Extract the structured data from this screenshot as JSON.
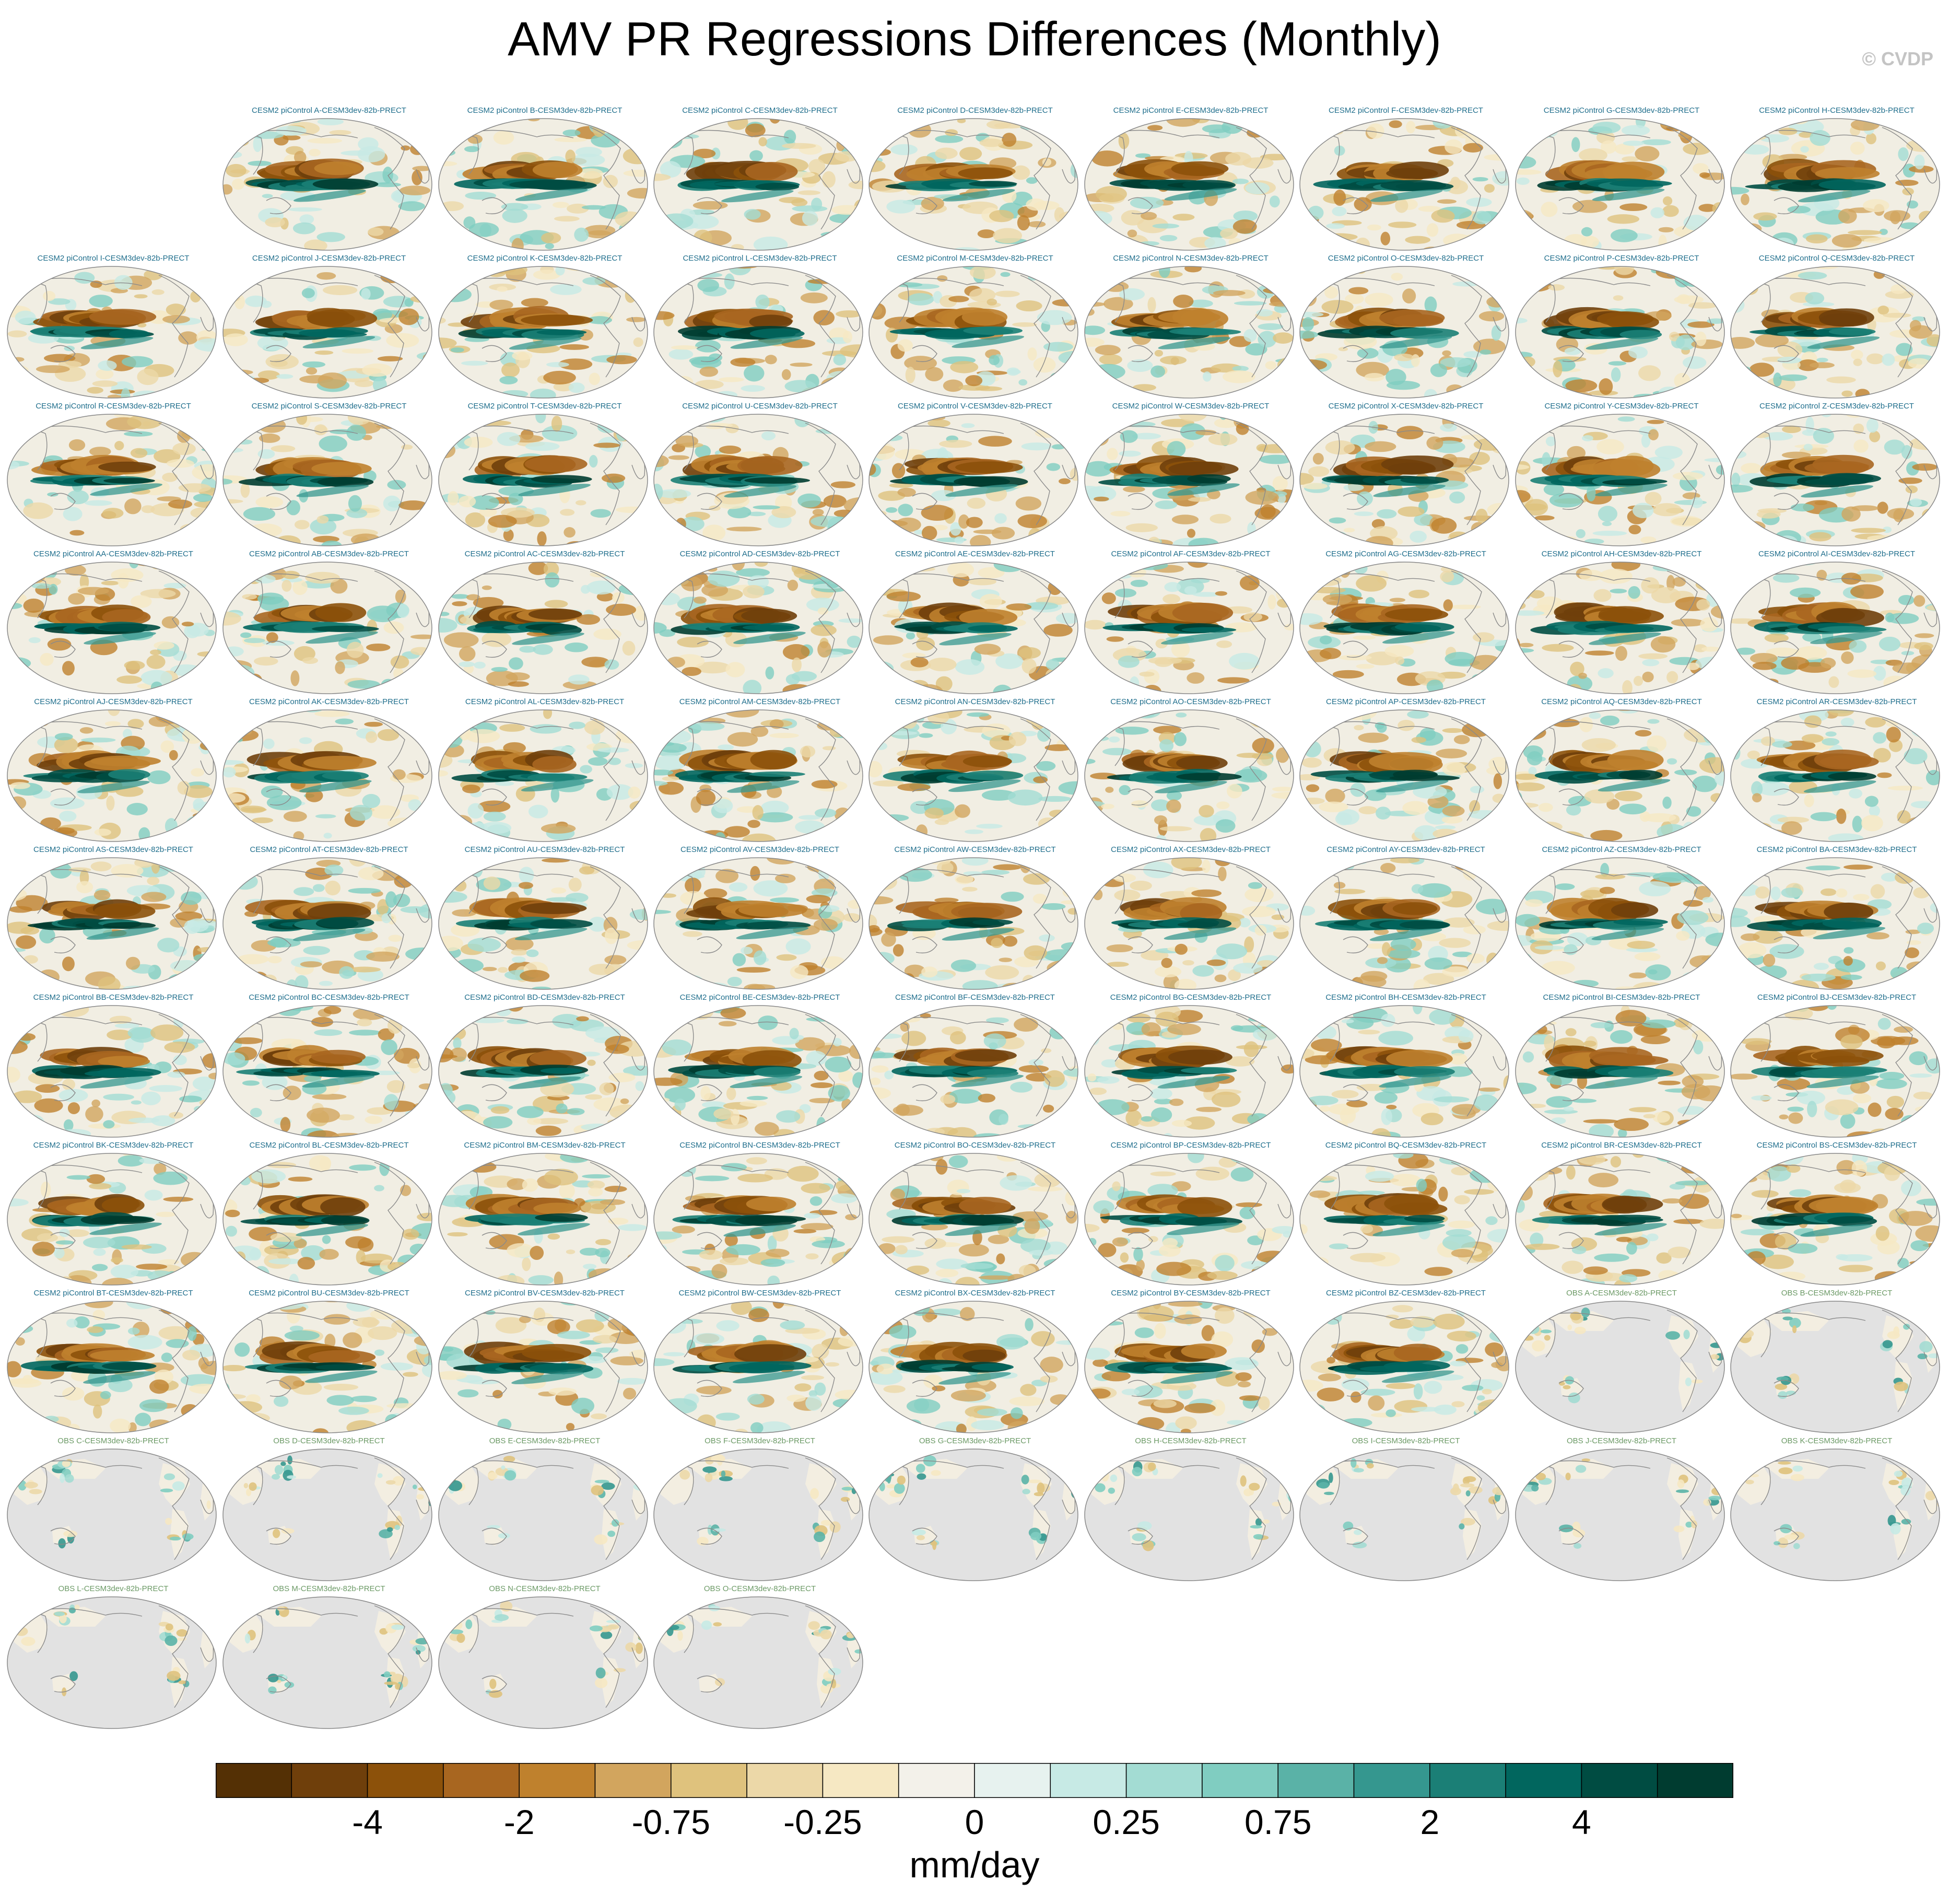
{
  "title": "AMV PR Regressions Differences (Monthly)",
  "credit": "© CVDP",
  "chart_data": {
    "type": "heatmap",
    "title": "AMV PR Regressions Differences (Monthly)",
    "units": "mm/day",
    "colorbar": {
      "levels": [
        -5,
        -4,
        -3,
        -2,
        -1,
        -0.75,
        -0.5,
        -0.25,
        -0.1,
        0,
        0.1,
        0.25,
        0.5,
        0.75,
        1,
        2,
        3,
        4,
        5
      ],
      "tick_labels": [
        "-4",
        "-2",
        "-0.75",
        "-0.25",
        "0",
        "0.25",
        "0.75",
        "2",
        "4"
      ],
      "tick_values": [
        -4,
        -2,
        -0.75,
        -0.25,
        0,
        0.25,
        0.75,
        2,
        4
      ],
      "colors": [
        "#543005",
        "#6f3f0b",
        "#8c510a",
        "#a86620",
        "#bf812d",
        "#d2a55e",
        "#dfc27d",
        "#ecd8a8",
        "#f6e8c3",
        "#f3f1ea",
        "#e7f2ef",
        "#c7eae5",
        "#a3dcd3",
        "#80cdc1",
        "#5ab2a7",
        "#35978f",
        "#1b7f76",
        "#01665e",
        "#004c42",
        "#003c30"
      ]
    },
    "panels": [
      {
        "title": "CESM2 piControl A-CESM3dev-82b-PRECT",
        "kind": "model"
      },
      {
        "title": "CESM2 piControl B-CESM3dev-82b-PRECT",
        "kind": "model"
      },
      {
        "title": "CESM2 piControl C-CESM3dev-82b-PRECT",
        "kind": "model"
      },
      {
        "title": "CESM2 piControl D-CESM3dev-82b-PRECT",
        "kind": "model"
      },
      {
        "title": "CESM2 piControl E-CESM3dev-82b-PRECT",
        "kind": "model"
      },
      {
        "title": "CESM2 piControl F-CESM3dev-82b-PRECT",
        "kind": "model"
      },
      {
        "title": "CESM2 piControl G-CESM3dev-82b-PRECT",
        "kind": "model"
      },
      {
        "title": "CESM2 piControl H-CESM3dev-82b-PRECT",
        "kind": "model"
      },
      {
        "title": "CESM2 piControl I-CESM3dev-82b-PRECT",
        "kind": "model"
      },
      {
        "title": "CESM2 piControl J-CESM3dev-82b-PRECT",
        "kind": "model"
      },
      {
        "title": "CESM2 piControl K-CESM3dev-82b-PRECT",
        "kind": "model"
      },
      {
        "title": "CESM2 piControl L-CESM3dev-82b-PRECT",
        "kind": "model"
      },
      {
        "title": "CESM2 piControl M-CESM3dev-82b-PRECT",
        "kind": "model"
      },
      {
        "title": "CESM2 piControl N-CESM3dev-82b-PRECT",
        "kind": "model"
      },
      {
        "title": "CESM2 piControl O-CESM3dev-82b-PRECT",
        "kind": "model"
      },
      {
        "title": "CESM2 piControl P-CESM3dev-82b-PRECT",
        "kind": "model"
      },
      {
        "title": "CESM2 piControl Q-CESM3dev-82b-PRECT",
        "kind": "model"
      },
      {
        "title": "CESM2 piControl R-CESM3dev-82b-PRECT",
        "kind": "model"
      },
      {
        "title": "CESM2 piControl S-CESM3dev-82b-PRECT",
        "kind": "model"
      },
      {
        "title": "CESM2 piControl T-CESM3dev-82b-PRECT",
        "kind": "model"
      },
      {
        "title": "CESM2 piControl U-CESM3dev-82b-PRECT",
        "kind": "model"
      },
      {
        "title": "CESM2 piControl V-CESM3dev-82b-PRECT",
        "kind": "model"
      },
      {
        "title": "CESM2 piControl W-CESM3dev-82b-PRECT",
        "kind": "model"
      },
      {
        "title": "CESM2 piControl X-CESM3dev-82b-PRECT",
        "kind": "model"
      },
      {
        "title": "CESM2 piControl Y-CESM3dev-82b-PRECT",
        "kind": "model"
      },
      {
        "title": "CESM2 piControl Z-CESM3dev-82b-PRECT",
        "kind": "model"
      },
      {
        "title": "CESM2 piControl AA-CESM3dev-82b-PRECT",
        "kind": "model"
      },
      {
        "title": "CESM2 piControl AB-CESM3dev-82b-PRECT",
        "kind": "model"
      },
      {
        "title": "CESM2 piControl AC-CESM3dev-82b-PRECT",
        "kind": "model"
      },
      {
        "title": "CESM2 piControl AD-CESM3dev-82b-PRECT",
        "kind": "model"
      },
      {
        "title": "CESM2 piControl AE-CESM3dev-82b-PRECT",
        "kind": "model"
      },
      {
        "title": "CESM2 piControl AF-CESM3dev-82b-PRECT",
        "kind": "model"
      },
      {
        "title": "CESM2 piControl AG-CESM3dev-82b-PRECT",
        "kind": "model"
      },
      {
        "title": "CESM2 piControl AH-CESM3dev-82b-PRECT",
        "kind": "model"
      },
      {
        "title": "CESM2 piControl AI-CESM3dev-82b-PRECT",
        "kind": "model"
      },
      {
        "title": "CESM2 piControl AJ-CESM3dev-82b-PRECT",
        "kind": "model"
      },
      {
        "title": "CESM2 piControl AK-CESM3dev-82b-PRECT",
        "kind": "model"
      },
      {
        "title": "CESM2 piControl AL-CESM3dev-82b-PRECT",
        "kind": "model"
      },
      {
        "title": "CESM2 piControl AM-CESM3dev-82b-PRECT",
        "kind": "model"
      },
      {
        "title": "CESM2 piControl AN-CESM3dev-82b-PRECT",
        "kind": "model"
      },
      {
        "title": "CESM2 piControl AO-CESM3dev-82b-PRECT",
        "kind": "model"
      },
      {
        "title": "CESM2 piControl AP-CESM3dev-82b-PRECT",
        "kind": "model"
      },
      {
        "title": "CESM2 piControl AQ-CESM3dev-82b-PRECT",
        "kind": "model"
      },
      {
        "title": "CESM2 piControl AR-CESM3dev-82b-PRECT",
        "kind": "model"
      },
      {
        "title": "CESM2 piControl AS-CESM3dev-82b-PRECT",
        "kind": "model"
      },
      {
        "title": "CESM2 piControl AT-CESM3dev-82b-PRECT",
        "kind": "model"
      },
      {
        "title": "CESM2 piControl AU-CESM3dev-82b-PRECT",
        "kind": "model"
      },
      {
        "title": "CESM2 piControl AV-CESM3dev-82b-PRECT",
        "kind": "model"
      },
      {
        "title": "CESM2 piControl AW-CESM3dev-82b-PRECT",
        "kind": "model"
      },
      {
        "title": "CESM2 piControl AX-CESM3dev-82b-PRECT",
        "kind": "model"
      },
      {
        "title": "CESM2 piControl AY-CESM3dev-82b-PRECT",
        "kind": "model"
      },
      {
        "title": "CESM2 piControl AZ-CESM3dev-82b-PRECT",
        "kind": "model"
      },
      {
        "title": "CESM2 piControl BA-CESM3dev-82b-PRECT",
        "kind": "model"
      },
      {
        "title": "CESM2 piControl BB-CESM3dev-82b-PRECT",
        "kind": "model"
      },
      {
        "title": "CESM2 piControl BC-CESM3dev-82b-PRECT",
        "kind": "model"
      },
      {
        "title": "CESM2 piControl BD-CESM3dev-82b-PRECT",
        "kind": "model"
      },
      {
        "title": "CESM2 piControl BE-CESM3dev-82b-PRECT",
        "kind": "model"
      },
      {
        "title": "CESM2 piControl BF-CESM3dev-82b-PRECT",
        "kind": "model"
      },
      {
        "title": "CESM2 piControl BG-CESM3dev-82b-PRECT",
        "kind": "model"
      },
      {
        "title": "CESM2 piControl BH-CESM3dev-82b-PRECT",
        "kind": "model"
      },
      {
        "title": "CESM2 piControl BI-CESM3dev-82b-PRECT",
        "kind": "model"
      },
      {
        "title": "CESM2 piControl BJ-CESM3dev-82b-PRECT",
        "kind": "model"
      },
      {
        "title": "CESM2 piControl BK-CESM3dev-82b-PRECT",
        "kind": "model"
      },
      {
        "title": "CESM2 piControl BL-CESM3dev-82b-PRECT",
        "kind": "model"
      },
      {
        "title": "CESM2 piControl BM-CESM3dev-82b-PRECT",
        "kind": "model"
      },
      {
        "title": "CESM2 piControl BN-CESM3dev-82b-PRECT",
        "kind": "model"
      },
      {
        "title": "CESM2 piControl BO-CESM3dev-82b-PRECT",
        "kind": "model"
      },
      {
        "title": "CESM2 piControl BP-CESM3dev-82b-PRECT",
        "kind": "model"
      },
      {
        "title": "CESM2 piControl BQ-CESM3dev-82b-PRECT",
        "kind": "model"
      },
      {
        "title": "CESM2 piControl BR-CESM3dev-82b-PRECT",
        "kind": "model"
      },
      {
        "title": "CESM2 piControl BS-CESM3dev-82b-PRECT",
        "kind": "model"
      },
      {
        "title": "CESM2 piControl BT-CESM3dev-82b-PRECT",
        "kind": "model"
      },
      {
        "title": "CESM2 piControl BU-CESM3dev-82b-PRECT",
        "kind": "model"
      },
      {
        "title": "CESM2 piControl BV-CESM3dev-82b-PRECT",
        "kind": "model"
      },
      {
        "title": "CESM2 piControl BW-CESM3dev-82b-PRECT",
        "kind": "model"
      },
      {
        "title": "CESM2 piControl BX-CESM3dev-82b-PRECT",
        "kind": "model"
      },
      {
        "title": "CESM2 piControl BY-CESM3dev-82b-PRECT",
        "kind": "model"
      },
      {
        "title": "CESM2 piControl BZ-CESM3dev-82b-PRECT",
        "kind": "model"
      },
      {
        "title": "OBS A-CESM3dev-82b-PRECT",
        "kind": "obs"
      },
      {
        "title": "OBS B-CESM3dev-82b-PRECT",
        "kind": "obs"
      },
      {
        "title": "OBS C-CESM3dev-82b-PRECT",
        "kind": "obs"
      },
      {
        "title": "OBS D-CESM3dev-82b-PRECT",
        "kind": "obs"
      },
      {
        "title": "OBS E-CESM3dev-82b-PRECT",
        "kind": "obs"
      },
      {
        "title": "OBS F-CESM3dev-82b-PRECT",
        "kind": "obs"
      },
      {
        "title": "OBS G-CESM3dev-82b-PRECT",
        "kind": "obs"
      },
      {
        "title": "OBS H-CESM3dev-82b-PRECT",
        "kind": "obs"
      },
      {
        "title": "OBS I-CESM3dev-82b-PRECT",
        "kind": "obs"
      },
      {
        "title": "OBS J-CESM3dev-82b-PRECT",
        "kind": "obs"
      },
      {
        "title": "OBS K-CESM3dev-82b-PRECT",
        "kind": "obs"
      },
      {
        "title": "OBS L-CESM3dev-82b-PRECT",
        "kind": "obs"
      },
      {
        "title": "OBS M-CESM3dev-82b-PRECT",
        "kind": "obs"
      },
      {
        "title": "OBS N-CESM3dev-82b-PRECT",
        "kind": "obs"
      },
      {
        "title": "OBS O-CESM3dev-82b-PRECT",
        "kind": "obs"
      }
    ]
  },
  "colors": {
    "model_title": "#1f6e8c",
    "obs_title": "#6c9a66",
    "land_missing": "#e2e2e2",
    "coast": "#8a8a8a",
    "outline": "#888888"
  }
}
